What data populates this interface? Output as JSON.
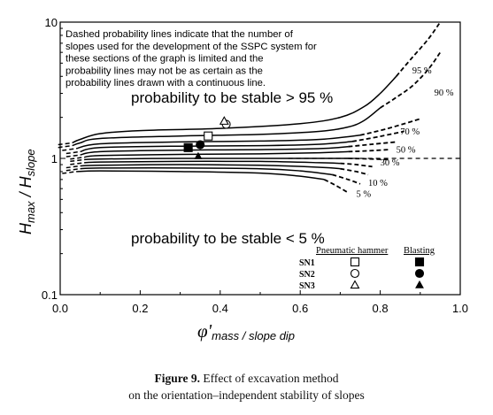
{
  "chart_data": {
    "type": "line",
    "title": "",
    "xlabel": "φ'mass / slope dip",
    "ylabel": "Hmax / Hslope",
    "xlim": [
      0.0,
      1.0
    ],
    "ylim": [
      0.1,
      10
    ],
    "yscale": "log",
    "grid": false,
    "x_ticks": [
      "0.0",
      "0.2",
      "0.4",
      "0.6",
      "0.8",
      "1.0"
    ],
    "y_ticks": [
      "0.1",
      "1",
      "10"
    ],
    "note": "Dashed probability lines indicate that the number of slopes used for the development of the SSPC system for these sections of the graph is limited and the probability lines may not be as certain as the probability lines drawn with a continuous line.",
    "region_labels": {
      "upper": "probability to be stable > 95 %",
      "lower": "probability to be stable < 5 %"
    },
    "series": [
      {
        "name": "95 %",
        "label_pos": [
          0.88,
          4.2
        ],
        "points": [
          [
            0.03,
            1.3
          ],
          [
            0.05,
            1.38
          ],
          [
            0.1,
            1.52
          ],
          [
            0.2,
            1.6
          ],
          [
            0.4,
            1.66
          ],
          [
            0.6,
            1.8
          ],
          [
            0.7,
            2.0
          ],
          [
            0.76,
            2.4
          ],
          [
            0.8,
            3.0
          ],
          [
            0.84,
            4.0
          ]
        ],
        "dashed": [
          [
            0.84,
            4.0
          ],
          [
            0.88,
            5.5
          ],
          [
            0.92,
            7.5
          ],
          [
            0.95,
            10
          ]
        ]
      },
      {
        "name": "90 %",
        "label_pos": [
          0.935,
          2.9
        ],
        "points": [
          [
            0.03,
            1.24
          ],
          [
            0.05,
            1.3
          ],
          [
            0.1,
            1.4
          ],
          [
            0.3,
            1.46
          ],
          [
            0.5,
            1.5
          ],
          [
            0.65,
            1.58
          ],
          [
            0.72,
            1.7
          ],
          [
            0.76,
            1.9
          ],
          [
            0.8,
            2.35
          ]
        ],
        "dashed": [
          [
            0.8,
            2.35
          ],
          [
            0.84,
            2.8
          ],
          [
            0.88,
            3.4
          ],
          [
            0.92,
            4.5
          ],
          [
            0.95,
            6.0
          ]
        ]
      },
      {
        "name": "",
        "label_pos": null,
        "points": [
          [
            0.04,
            1.18
          ],
          [
            0.1,
            1.28
          ],
          [
            0.3,
            1.32
          ],
          [
            0.5,
            1.34
          ],
          [
            0.65,
            1.38
          ],
          [
            0.75,
            1.48
          ]
        ],
        "dashed": [
          [
            0.75,
            1.48
          ],
          [
            0.82,
            1.66
          ],
          [
            0.9,
            1.95
          ]
        ]
      },
      {
        "name": "70 %",
        "label_pos": [
          0.85,
          1.5
        ],
        "points": [
          [
            0.05,
            1.12
          ],
          [
            0.1,
            1.2
          ],
          [
            0.3,
            1.23
          ],
          [
            0.5,
            1.24
          ],
          [
            0.65,
            1.27
          ],
          [
            0.73,
            1.33
          ]
        ],
        "dashed": [
          [
            0.73,
            1.33
          ],
          [
            0.8,
            1.45
          ],
          [
            0.86,
            1.58
          ]
        ]
      },
      {
        "name": "",
        "label_pos": null,
        "points": [
          [
            0.05,
            1.06
          ],
          [
            0.1,
            1.12
          ],
          [
            0.3,
            1.15
          ],
          [
            0.5,
            1.16
          ],
          [
            0.65,
            1.18
          ],
          [
            0.72,
            1.22
          ]
        ],
        "dashed": [
          [
            0.72,
            1.22
          ],
          [
            0.78,
            1.27
          ],
          [
            0.84,
            1.32
          ]
        ]
      },
      {
        "name": "50 %",
        "label_pos": [
          0.84,
          1.1
        ],
        "points": [
          [
            0.06,
            1.02
          ],
          [
            0.1,
            1.05
          ],
          [
            0.3,
            1.07
          ],
          [
            0.5,
            1.08
          ],
          [
            0.65,
            1.1
          ],
          [
            0.72,
            1.12
          ]
        ],
        "dashed": [
          [
            0.72,
            1.12
          ],
          [
            0.78,
            1.14
          ],
          [
            0.82,
            1.16
          ]
        ]
      },
      {
        "name": "",
        "label_pos": null,
        "points": [
          [
            0.06,
            0.98
          ],
          [
            0.1,
            0.99
          ],
          [
            0.3,
            1.0
          ],
          [
            0.5,
            1.0
          ],
          [
            0.65,
            1.0
          ],
          [
            0.72,
            1.0
          ]
        ],
        "dashed": [
          [
            0.72,
            1.0
          ],
          [
            0.78,
            0.99
          ],
          [
            0.82,
            0.98
          ]
        ]
      },
      {
        "name": "30 %",
        "label_pos": [
          0.8,
          0.89
        ],
        "points": [
          [
            0.06,
            0.93
          ],
          [
            0.1,
            0.94
          ],
          [
            0.3,
            0.95
          ],
          [
            0.5,
            0.95
          ],
          [
            0.65,
            0.93
          ],
          [
            0.7,
            0.92
          ]
        ],
        "dashed": [
          [
            0.7,
            0.92
          ],
          [
            0.74,
            0.9
          ],
          [
            0.78,
            0.87
          ]
        ]
      },
      {
        "name": "",
        "label_pos": null,
        "points": [
          [
            0.05,
            0.88
          ],
          [
            0.1,
            0.89
          ],
          [
            0.3,
            0.9
          ],
          [
            0.5,
            0.89
          ],
          [
            0.65,
            0.86
          ],
          [
            0.7,
            0.84
          ]
        ],
        "dashed": [
          [
            0.7,
            0.84
          ],
          [
            0.74,
            0.8
          ],
          [
            0.77,
            0.76
          ]
        ]
      },
      {
        "name": "10 %",
        "label_pos": [
          0.77,
          0.63
        ],
        "points": [
          [
            0.05,
            0.84
          ],
          [
            0.1,
            0.85
          ],
          [
            0.3,
            0.85
          ],
          [
            0.5,
            0.84
          ],
          [
            0.6,
            0.81
          ],
          [
            0.68,
            0.76
          ]
        ],
        "dashed": [
          [
            0.68,
            0.76
          ],
          [
            0.72,
            0.7
          ],
          [
            0.75,
            0.65
          ]
        ]
      },
      {
        "name": "5 %",
        "label_pos": [
          0.74,
          0.52
        ],
        "points": [
          [
            0.04,
            0.8
          ],
          [
            0.1,
            0.81
          ],
          [
            0.3,
            0.8
          ],
          [
            0.5,
            0.78
          ],
          [
            0.6,
            0.74
          ],
          [
            0.66,
            0.7
          ]
        ],
        "dashed": [
          [
            0.66,
            0.7
          ],
          [
            0.69,
            0.63
          ],
          [
            0.72,
            0.56
          ]
        ]
      }
    ],
    "reference_line": {
      "y": 1.0,
      "style": "dashed",
      "x_from": 0.57,
      "x_to": 1.0
    },
    "markers": [
      {
        "name": "SN1 Pneumatic hammer",
        "shape": "open-square",
        "x": 0.37,
        "y": 1.46
      },
      {
        "name": "SN1 Blasting",
        "shape": "filled-square",
        "x": 0.32,
        "y": 1.2
      },
      {
        "name": "SN2 Pneumatic hammer",
        "shape": "open-circle",
        "x": 0.415,
        "y": 1.78
      },
      {
        "name": "SN2 Blasting",
        "shape": "filled-circle",
        "x": 0.35,
        "y": 1.26
      },
      {
        "name": "SN3 Pneumatic hammer",
        "shape": "open-triangle",
        "x": 0.41,
        "y": 1.88
      },
      {
        "name": "SN3 Blasting",
        "shape": "filled-triangle",
        "x": 0.345,
        "y": 1.04
      }
    ],
    "legend": {
      "placement": "bottom-right",
      "column_headers": [
        "Pneumatic hammer",
        "Blasting"
      ],
      "rows": [
        {
          "label": "SN1",
          "pneumatic": "open-square",
          "blasting": "filled-square"
        },
        {
          "label": "SN2",
          "pneumatic": "open-circle",
          "blasting": "filled-circle"
        },
        {
          "label": "SN3",
          "pneumatic": "open-triangle",
          "blasting": "filled-triangle"
        }
      ]
    }
  },
  "caption": {
    "bold": "Figure 9.",
    "line1_rest": " Effect of excavation method",
    "line2": "on the orientation–independent stability of slopes"
  },
  "colors": {
    "ink": "#000000",
    "background": "#ffffff"
  }
}
